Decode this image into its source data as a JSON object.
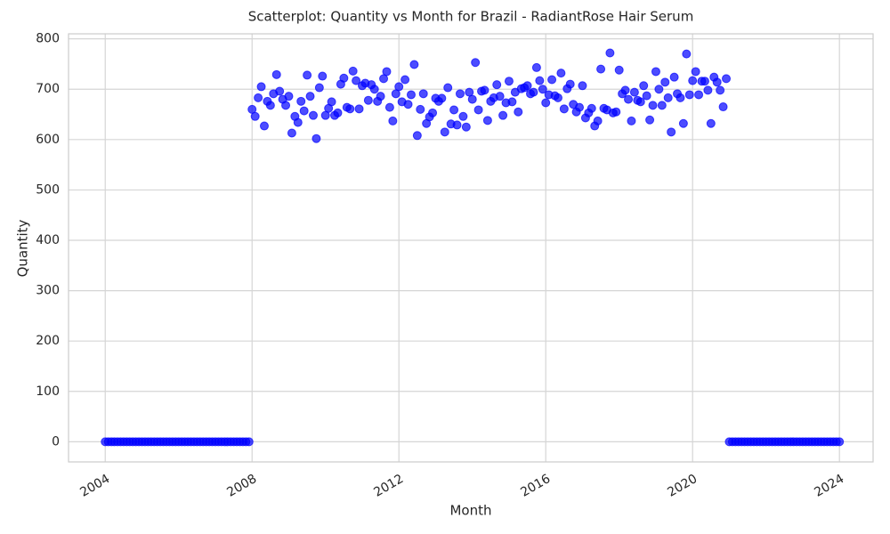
{
  "chart_data": {
    "type": "scatter",
    "title": "Scatterplot: Quantity vs Month for Brazil - RadiantRose Hair Serum",
    "x_label": "Month",
    "y_label": "Quantity",
    "color": "#0000ff",
    "grid": true,
    "xlim": [
      "2003-01",
      "2024-12"
    ],
    "xticks": [
      "2004",
      "2008",
      "2012",
      "2016",
      "2020",
      "2024"
    ],
    "ylim": [
      -40,
      810
    ],
    "yticks": [
      0,
      100,
      200,
      300,
      400,
      500,
      600,
      700,
      800
    ],
    "x": [
      "2004-01",
      "2004-02",
      "2004-03",
      "2004-04",
      "2004-05",
      "2004-06",
      "2004-07",
      "2004-08",
      "2004-09",
      "2004-10",
      "2004-11",
      "2004-12",
      "2005-01",
      "2005-02",
      "2005-03",
      "2005-04",
      "2005-05",
      "2005-06",
      "2005-07",
      "2005-08",
      "2005-09",
      "2005-10",
      "2005-11",
      "2005-12",
      "2006-01",
      "2006-02",
      "2006-03",
      "2006-04",
      "2006-05",
      "2006-06",
      "2006-07",
      "2006-08",
      "2006-09",
      "2006-10",
      "2006-11",
      "2006-12",
      "2007-01",
      "2007-02",
      "2007-03",
      "2007-04",
      "2007-05",
      "2007-06",
      "2007-07",
      "2007-08",
      "2007-09",
      "2007-10",
      "2007-11",
      "2007-12",
      "2008-01",
      "2008-02",
      "2008-03",
      "2008-04",
      "2008-05",
      "2008-06",
      "2008-07",
      "2008-08",
      "2008-09",
      "2008-10",
      "2008-11",
      "2008-12",
      "2009-01",
      "2009-02",
      "2009-03",
      "2009-04",
      "2009-05",
      "2009-06",
      "2009-07",
      "2009-08",
      "2009-09",
      "2009-10",
      "2009-11",
      "2009-12",
      "2010-01",
      "2010-02",
      "2010-03",
      "2010-04",
      "2010-05",
      "2010-06",
      "2010-07",
      "2010-08",
      "2010-09",
      "2010-10",
      "2010-11",
      "2010-12",
      "2011-01",
      "2011-02",
      "2011-03",
      "2011-04",
      "2011-05",
      "2011-06",
      "2011-07",
      "2011-08",
      "2011-09",
      "2011-10",
      "2011-11",
      "2011-12",
      "2012-01",
      "2012-02",
      "2012-03",
      "2012-04",
      "2012-05",
      "2012-06",
      "2012-07",
      "2012-08",
      "2012-09",
      "2012-10",
      "2012-11",
      "2012-12",
      "2013-01",
      "2013-02",
      "2013-03",
      "2013-04",
      "2013-05",
      "2013-06",
      "2013-07",
      "2013-08",
      "2013-09",
      "2013-10",
      "2013-11",
      "2013-12",
      "2014-01",
      "2014-02",
      "2014-03",
      "2014-04",
      "2014-05",
      "2014-06",
      "2014-07",
      "2014-08",
      "2014-09",
      "2014-10",
      "2014-11",
      "2014-12",
      "2015-01",
      "2015-02",
      "2015-03",
      "2015-04",
      "2015-05",
      "2015-06",
      "2015-07",
      "2015-08",
      "2015-09",
      "2015-10",
      "2015-11",
      "2015-12",
      "2016-01",
      "2016-02",
      "2016-03",
      "2016-04",
      "2016-05",
      "2016-06",
      "2016-07",
      "2016-08",
      "2016-09",
      "2016-10",
      "2016-11",
      "2016-12",
      "2017-01",
      "2017-02",
      "2017-03",
      "2017-04",
      "2017-05",
      "2017-06",
      "2017-07",
      "2017-08",
      "2017-09",
      "2017-10",
      "2017-11",
      "2017-12",
      "2018-01",
      "2018-02",
      "2018-03",
      "2018-04",
      "2018-05",
      "2018-06",
      "2018-07",
      "2018-08",
      "2018-09",
      "2018-10",
      "2018-11",
      "2018-12",
      "2019-01",
      "2019-02",
      "2019-03",
      "2019-04",
      "2019-05",
      "2019-06",
      "2019-07",
      "2019-08",
      "2019-09",
      "2019-10",
      "2019-11",
      "2019-12",
      "2020-01",
      "2020-02",
      "2020-03",
      "2020-04",
      "2020-05",
      "2020-06",
      "2020-07",
      "2020-08",
      "2020-09",
      "2020-10",
      "2020-11",
      "2020-12",
      "2021-01",
      "2021-02",
      "2021-03",
      "2021-04",
      "2021-05",
      "2021-06",
      "2021-07",
      "2021-08",
      "2021-09",
      "2021-10",
      "2021-11",
      "2021-12",
      "2022-01",
      "2022-02",
      "2022-03",
      "2022-04",
      "2022-05",
      "2022-06",
      "2022-07",
      "2022-08",
      "2022-09",
      "2022-10",
      "2022-11",
      "2022-12",
      "2023-01",
      "2023-02",
      "2023-03",
      "2023-04",
      "2023-05",
      "2023-06",
      "2023-07",
      "2023-08",
      "2023-09",
      "2023-10",
      "2023-11",
      "2023-12",
      "2024-01"
    ],
    "values": [
      0,
      0,
      0,
      0,
      0,
      0,
      0,
      0,
      0,
      0,
      0,
      0,
      0,
      0,
      0,
      0,
      0,
      0,
      0,
      0,
      0,
      0,
      0,
      0,
      0,
      0,
      0,
      0,
      0,
      0,
      0,
      0,
      0,
      0,
      0,
      0,
      0,
      0,
      0,
      0,
      0,
      0,
      0,
      0,
      0,
      0,
      0,
      0,
      660,
      646,
      683,
      705,
      627,
      676,
      668,
      691,
      729,
      696,
      680,
      668,
      686,
      613,
      646,
      634,
      676,
      657,
      728,
      686,
      648,
      602,
      703,
      726,
      648,
      662,
      675,
      648,
      653,
      710,
      722,
      664,
      661,
      736,
      717,
      661,
      707,
      712,
      678,
      709,
      700,
      676,
      686,
      721,
      735,
      664,
      637,
      691,
      705,
      675,
      719,
      670,
      689,
      749,
      608,
      660,
      691,
      632,
      645,
      653,
      682,
      676,
      682,
      615,
      703,
      631,
      659,
      629,
      691,
      646,
      625,
      694,
      680,
      753,
      659,
      696,
      698,
      638,
      676,
      683,
      709,
      686,
      648,
      673,
      716,
      675,
      694,
      655,
      701,
      703,
      707,
      691,
      694,
      743,
      717,
      700,
      673,
      689,
      719,
      687,
      683,
      732,
      661,
      701,
      710,
      670,
      655,
      664,
      707,
      643,
      653,
      662,
      627,
      637,
      740,
      662,
      659,
      772,
      653,
      655,
      738,
      691,
      698,
      680,
      637,
      694,
      678,
      675,
      707,
      687,
      639,
      668,
      735,
      700,
      668,
      714,
      683,
      615,
      724,
      691,
      683,
      632,
      770,
      689,
      717,
      735,
      689,
      716,
      716,
      698,
      632,
      724,
      714,
      698,
      665,
      721,
      0,
      0,
      0,
      0,
      0,
      0,
      0,
      0,
      0,
      0,
      0,
      0,
      0,
      0,
      0,
      0,
      0,
      0,
      0,
      0,
      0,
      0,
      0,
      0,
      0,
      0,
      0,
      0,
      0,
      0,
      0,
      0,
      0,
      0,
      0,
      0,
      0
    ]
  }
}
